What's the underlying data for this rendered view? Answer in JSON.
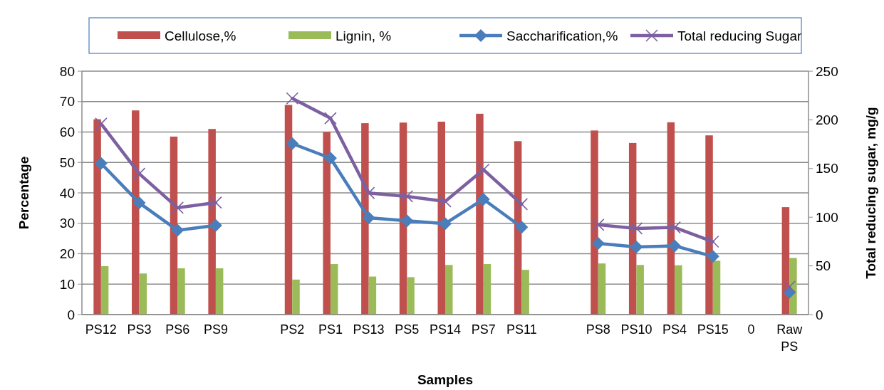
{
  "chart_data": {
    "type": "bar",
    "xlabel": "Samples",
    "ylabel": "Percentage",
    "y2label": "Total reducing sugar, mg/g",
    "categories": [
      "PS12",
      "PS3",
      "PS6",
      "PS9",
      null,
      "PS2",
      "PS1",
      "PS13",
      "PS5",
      "PS14",
      "PS7",
      "PS11",
      null,
      "PS8",
      "PS10",
      "PS4",
      "PS15",
      "0",
      "Raw PS"
    ],
    "series": [
      {
        "name": "Cellulose,%",
        "color": "#c0504d",
        "values": [
          64.2,
          67.1,
          58.5,
          61.0,
          null,
          68.9,
          60.0,
          62.9,
          63.1,
          63.4,
          66.0,
          57.0,
          null,
          60.5,
          56.4,
          63.2,
          58.9,
          null,
          35.3
        ]
      },
      {
        "name": "Lignin, %",
        "color": "#9bbb59",
        "values": [
          15.9,
          13.5,
          15.2,
          15.2,
          null,
          11.5,
          16.6,
          12.5,
          12.3,
          16.3,
          16.6,
          14.7,
          null,
          16.8,
          16.3,
          16.2,
          17.7,
          null,
          18.6
        ]
      },
      {
        "name": "Saccharification,%",
        "type": "line",
        "color": "#4a7ebb",
        "marker": "diamond",
        "values": [
          49.7,
          36.7,
          27.7,
          29.3,
          null,
          56.2,
          51.4,
          31.8,
          30.8,
          29.9,
          37.9,
          28.7,
          null,
          23.4,
          22.2,
          22.6,
          19.1,
          null,
          7.3
        ]
      },
      {
        "name": "Total reducing Sugar",
        "type": "line",
        "axis": "y2",
        "color": "#7d60a0",
        "marker": "cross",
        "values": [
          196,
          144.6,
          109.7,
          115,
          null,
          222,
          201.7,
          124.9,
          121.4,
          116.3,
          148.8,
          113.4,
          null,
          92.2,
          88.5,
          89.5,
          74.9,
          null,
          28.5
        ]
      }
    ],
    "ylim": [
      0,
      80
    ],
    "yticks": [
      0,
      10,
      20,
      30,
      40,
      50,
      60,
      70,
      80
    ],
    "y2lim": [
      0,
      250
    ],
    "y2ticks": [
      0,
      50,
      100,
      150,
      200,
      250
    ],
    "grid": "y",
    "legend": "top"
  }
}
